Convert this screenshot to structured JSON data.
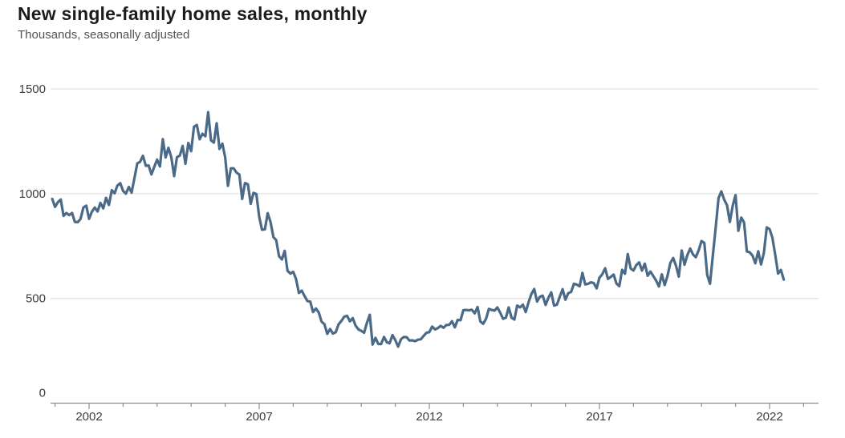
{
  "header": {
    "title": "New single-family home sales, monthly",
    "subtitle": "Thousands, seasonally adjusted"
  },
  "chart_data": {
    "type": "line",
    "title": "New single-family home sales, monthly",
    "subtitle": "Thousands, seasonally adjusted",
    "grid": "horizontal-only",
    "legend": "none",
    "ylim": [
      0,
      1500
    ],
    "y_ticks": [
      0,
      500,
      1000,
      1500
    ],
    "x_axis": {
      "minor_tick_start_year": 2001,
      "minor_tick_end_year": 2023,
      "major_tick_years": [
        2002,
        2007,
        2012,
        2017,
        2022
      ],
      "tick_labels": [
        "2002",
        "2007",
        "2012",
        "2017",
        "2022"
      ]
    },
    "colors": {
      "line": "#4a6a87",
      "grid": "#e3e3e3",
      "axis": "#8f8f8f",
      "tick_label": "#3d3d3d",
      "title": "#1c1c1c",
      "subtitle": "#545454",
      "background": "#ffffff"
    },
    "series": [
      {
        "name": "New single-family home sales (thousands, seasonally adjusted annual rate)",
        "frequency": "monthly",
        "start_year": 2000,
        "start_month": 12,
        "values": [
          975,
          937,
          959,
          972,
          894,
          908,
          898,
          908,
          865,
          864,
          880,
          934,
          943,
          880,
          914,
          934,
          915,
          956,
          930,
          980,
          946,
          1017,
          1002,
          1039,
          1050,
          1013,
          1000,
          1032,
          1005,
          1074,
          1145,
          1152,
          1181,
          1133,
          1135,
          1092,
          1129,
          1163,
          1130,
          1260,
          1173,
          1219,
          1174,
          1084,
          1174,
          1182,
          1228,
          1143,
          1242,
          1203,
          1319,
          1328,
          1260,
          1286,
          1274,
          1389,
          1255,
          1244,
          1336,
          1214,
          1239,
          1174,
          1038,
          1121,
          1121,
          1101,
          1091,
          975,
          1051,
          1045,
          952,
          1004,
          998,
          890,
          828,
          830,
          907,
          865,
          793,
          778,
          702,
          686,
          727,
          632,
          619,
          627,
          593,
          526,
          537,
          512,
          487,
          485,
          435,
          452,
          433,
          389,
          377,
          331,
          354,
          332,
          339,
          376,
          393,
          413,
          417,
          391,
          406,
          370,
          352,
          345,
          336,
          384,
          422,
          280,
          312,
          283,
          282,
          316,
          291,
          286,
          325,
          301,
          270,
          305,
          316,
          315,
          299,
          300,
          296,
          303,
          305,
          321,
          336,
          339,
          366,
          352,
          358,
          369,
          360,
          373,
          374,
          391,
          362,
          398,
          396,
          444,
          445,
          443,
          446,
          429,
          459,
          390,
          379,
          403,
          450,
          445,
          442,
          457,
          432,
          403,
          408,
          457,
          408,
          399,
          466,
          457,
          470,
          435,
          482,
          521,
          545,
          485,
          508,
          513,
          469,
          503,
          529,
          466,
          470,
          508,
          544,
          494,
          525,
          531,
          570,
          566,
          558,
          622,
          567,
          570,
          577,
          573,
          548,
          599,
          615,
          644,
          593,
          603,
          614,
          571,
          559,
          637,
          618,
          712,
          643,
          633,
          659,
          672,
          633,
          666,
          608,
          628,
          607,
          585,
          557,
          615,
          564,
          607,
          669,
          693,
          656,
          604,
          729,
          661,
          706,
          738,
          710,
          697,
          730,
          774,
          765,
          612,
          570,
          704,
          840,
          979,
          1011,
          971,
          945,
          865,
          943,
          993,
          823,
          886,
          863,
          724,
          720,
          704,
          668,
          725,
          662,
          717,
          839,
          831,
          790,
          707,
          619,
          636,
          590
        ]
      }
    ]
  }
}
